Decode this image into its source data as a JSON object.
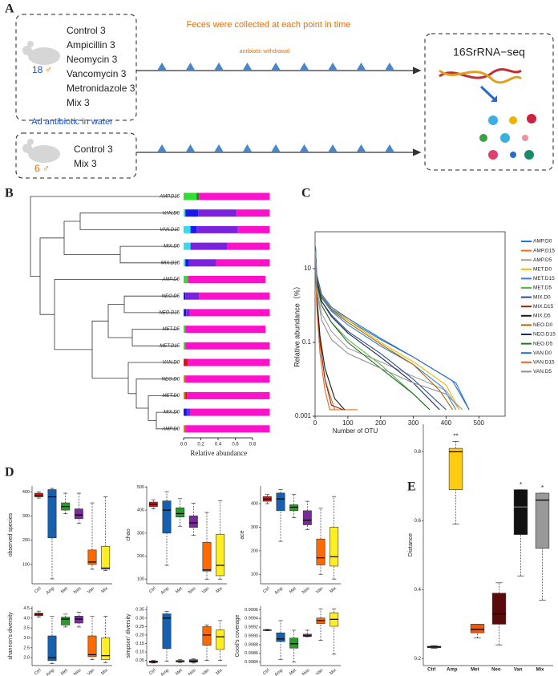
{
  "panel_labels": [
    "A",
    "B",
    "C",
    "D",
    "E"
  ],
  "schematic": {
    "group1": {
      "count": "18",
      "sex": "♂",
      "groups": [
        "Control 3",
        "Ampicillin 3",
        "Neomycin 3",
        "Vancomycin 3",
        "Metronidazole 3",
        "Mix 3"
      ]
    },
    "group2": {
      "count": "6",
      "sex": "♂",
      "groups": [
        "Control 3",
        "Mix 3"
      ]
    },
    "feces_note": "Feces were collected at each point in time",
    "withdrawal_note": "antibiotic withdrawal",
    "water_note": "Ad antibiotic in water",
    "sequencing": "16SrRNA−seq"
  },
  "chart_data": [
    {
      "type": "stacked-bar",
      "xlabel": "Relative abundance",
      "categories": [
        "AMP.D15",
        "VAN.D5",
        "VAN.D15",
        "MIX.D5",
        "MIX.D15",
        "AMP.D5",
        "NEO.D5",
        "NEO.D15",
        "MET.D5",
        "MET.D15",
        "VAN.D0",
        "NEO.D0",
        "MET.D0",
        "MIX.D0",
        "AMP.D0"
      ],
      "segments": [
        [
          0.15,
          0.03,
          0.82
        ],
        [
          0.02,
          0.15,
          0.44,
          0.39
        ],
        [
          0.08,
          0.07,
          0.48,
          0.37
        ],
        [
          0.08,
          0.43,
          0.49
        ],
        [
          0.02,
          0.04,
          0.32,
          0.62
        ],
        [
          0.05,
          0.9
        ],
        [
          0.02,
          0.16,
          0.82
        ],
        [
          0.03,
          0.04,
          0.93
        ],
        [
          0.02,
          0.93
        ],
        [
          0.02,
          0.98
        ],
        [
          0.05,
          0.95
        ],
        [
          0.02,
          0.98
        ],
        [
          0.02,
          0.02,
          0.96
        ],
        [
          0.04,
          0.04,
          0.92
        ],
        [
          0.02,
          0.98
        ]
      ],
      "segment_colors": [
        [
          "#33dd33",
          "#1a8a1a",
          "#ff11cc"
        ],
        [
          "#33ddee",
          "#1a1aee",
          "#7a22dd",
          "#ff11cc"
        ],
        [
          "#33ddee",
          "#1a1aee",
          "#7a22dd",
          "#ff11cc"
        ],
        [
          "#33ddee",
          "#7a22dd",
          "#ff11cc"
        ],
        [
          "#33ddee",
          "#1a1aee",
          "#7a22dd",
          "#ff11cc"
        ],
        [
          "#33dd33",
          "#ff11cc"
        ],
        [
          "#1a1aee",
          "#7a22dd",
          "#ff11cc"
        ],
        [
          "#1a1aee",
          "#7a22dd",
          "#ff11cc"
        ],
        [
          "#33dd33",
          "#ff11cc"
        ],
        [
          "#33dd33",
          "#ff11cc"
        ],
        [
          "#dd1111",
          "#ff11cc"
        ],
        [
          "#dd7711",
          "#ff11cc"
        ],
        [
          "#dd7711",
          "#dd1111",
          "#ff11cc"
        ],
        [
          "#1a1aee",
          "#7a22dd",
          "#ff11cc"
        ],
        [
          "#dd7711",
          "#ff11cc"
        ]
      ],
      "xlim": [
        0,
        1
      ],
      "xticks": [
        {
          "value": 0,
          "label": "0.0"
        },
        0.2,
        0.4,
        0.6,
        0.8
      ]
    },
    {
      "type": "line",
      "xlabel": "Number of OTU",
      "ylabel": "Relative abundance（%）",
      "log_y": true,
      "xlim": [
        0,
        580
      ],
      "ylim": [
        0.001,
        100
      ],
      "xticks": [
        0,
        100,
        200,
        300,
        400,
        500
      ],
      "yticks": [
        10,
        0.1,
        0.001
      ],
      "series": [
        {
          "name": "AMP.D0",
          "color": "#1f77d4",
          "x": [
            1,
            5,
            20,
            50,
            100,
            200,
            300,
            430,
            470
          ],
          "values": [
            40,
            6,
            1.8,
            0.8,
            0.4,
            0.12,
            0.04,
            0.008,
            0.0015
          ]
        },
        {
          "name": "AMP.D15",
          "color": "#e8701a",
          "x": [
            1,
            5,
            15,
            30,
            60,
            130
          ],
          "values": [
            20,
            1.5,
            0.1,
            0.01,
            0.0015,
            0.0015
          ]
        },
        {
          "name": "AMP.D5",
          "color": "#a0a0a0",
          "x": [
            1,
            5,
            20,
            50,
            100,
            200,
            300,
            400,
            440
          ],
          "values": [
            30,
            3,
            0.6,
            0.2,
            0.07,
            0.03,
            0.012,
            0.005,
            0.0015
          ]
        },
        {
          "name": "MET.D0",
          "color": "#f0b800",
          "x": [
            1,
            5,
            20,
            50,
            100,
            200,
            300,
            400,
            440
          ],
          "values": [
            40,
            7,
            2,
            0.9,
            0.4,
            0.1,
            0.03,
            0.007,
            0.0015
          ]
        },
        {
          "name": "MET.D15",
          "color": "#3a7fd0",
          "x": [
            1,
            5,
            20,
            50,
            100,
            200,
            300,
            390,
            430
          ],
          "values": [
            40,
            6,
            1.6,
            0.7,
            0.3,
            0.08,
            0.025,
            0.006,
            0.0015
          ]
        },
        {
          "name": "MET.D5",
          "color": "#5ab54a",
          "x": [
            1,
            5,
            20,
            50,
            100,
            200,
            300,
            350
          ],
          "values": [
            35,
            4,
            1,
            0.35,
            0.12,
            0.025,
            0.004,
            0.0015
          ]
        },
        {
          "name": "MIX.D0",
          "color": "#2a4d8f",
          "x": [
            1,
            5,
            20,
            50,
            100,
            200,
            300,
            400
          ],
          "values": [
            40,
            5,
            1.3,
            0.55,
            0.2,
            0.05,
            0.01,
            0.0015
          ]
        },
        {
          "name": "MIX.D15",
          "color": "#8b2a10",
          "x": [
            1,
            5,
            15,
            30,
            50,
            85
          ],
          "values": [
            25,
            1.5,
            0.1,
            0.01,
            0.002,
            0.0015
          ]
        },
        {
          "name": "MIX.D5",
          "color": "#1a1a1a",
          "x": [
            1,
            5,
            15,
            30,
            60,
            90
          ],
          "values": [
            25,
            2,
            0.15,
            0.02,
            0.003,
            0.0015
          ]
        },
        {
          "name": "NEO.D0",
          "color": "#b06a00",
          "x": [
            1,
            5,
            20,
            50,
            100,
            200,
            300,
            380,
            420
          ],
          "values": [
            40,
            6,
            1.7,
            0.75,
            0.35,
            0.09,
            0.025,
            0.005,
            0.0015
          ]
        },
        {
          "name": "NEO.D15",
          "color": "#1a2a5a",
          "x": [
            1,
            5,
            20,
            50,
            100,
            200,
            300,
            380
          ],
          "values": [
            38,
            5,
            1.3,
            0.5,
            0.18,
            0.04,
            0.008,
            0.0015
          ]
        },
        {
          "name": "NEO.D5",
          "color": "#2a6a2a",
          "x": [
            1,
            5,
            20,
            50,
            100,
            200,
            300,
            350
          ],
          "values": [
            35,
            4,
            1,
            0.35,
            0.1,
            0.02,
            0.004,
            0.0015
          ]
        },
        {
          "name": "VAN.D0",
          "color": "#2a6abf",
          "x": [
            1,
            5,
            20,
            50,
            100,
            200,
            300,
            420,
            470
          ],
          "values": [
            40,
            7,
            2,
            0.9,
            0.45,
            0.13,
            0.04,
            0.009,
            0.0015
          ]
        },
        {
          "name": "VAN.D15",
          "color": "#e06a20",
          "x": [
            1,
            5,
            15,
            30,
            45,
            60
          ],
          "values": [
            20,
            1,
            0.05,
            0.005,
            0.0015,
            0.0015
          ]
        },
        {
          "name": "VAN.D5",
          "color": "#909090",
          "x": [
            1,
            5,
            20,
            50,
            100,
            200,
            300,
            400,
            450
          ],
          "values": [
            30,
            2.5,
            0.4,
            0.12,
            0.05,
            0.02,
            0.008,
            0.004,
            0.0015
          ]
        }
      ]
    },
    {
      "type": "box",
      "ylabel": "observed species",
      "categories": [
        "Ctrl",
        "Amp",
        "Met",
        "Neo",
        "Van",
        "Mix"
      ],
      "colors": [
        "#dd1111",
        "#1560b0",
        "#2a9a2a",
        "#7a2a9a",
        "#ff6a00",
        "#ffee22"
      ],
      "boxes": [
        [
          375,
          380,
          385,
          395,
          400
        ],
        [
          40,
          210,
          380,
          410,
          415
        ],
        [
          310,
          325,
          340,
          355,
          395
        ],
        [
          270,
          290,
          305,
          330,
          395
        ],
        [
          80,
          100,
          110,
          160,
          355
        ],
        [
          75,
          80,
          85,
          175,
          380
        ]
      ],
      "ylim": [
        20,
        425
      ],
      "yticks": [
        100,
        200,
        300,
        400
      ]
    },
    {
      "type": "box",
      "ylabel": "chao",
      "categories": [
        "Ctrl",
        "Amp",
        "Met",
        "Neo",
        "Van",
        "Mix"
      ],
      "colors": [
        "#dd1111",
        "#1560b0",
        "#2a9a2a",
        "#7a2a9a",
        "#ff6a00",
        "#ffee22"
      ],
      "boxes": [
        [
          405,
          415,
          425,
          435,
          445
        ],
        [
          160,
          300,
          400,
          440,
          480
        ],
        [
          330,
          370,
          385,
          410,
          450
        ],
        [
          290,
          325,
          345,
          375,
          430
        ],
        [
          100,
          135,
          140,
          260,
          390
        ],
        [
          100,
          115,
          160,
          295,
          440
        ]
      ],
      "ylim": [
        80,
        505
      ],
      "yticks": [
        100,
        200,
        300,
        400,
        500
      ]
    },
    {
      "type": "box",
      "ylabel": "ace",
      "categories": [
        "Ctrl",
        "Amp",
        "Met",
        "Neo",
        "Van",
        "Mix"
      ],
      "colors": [
        "#dd1111",
        "#1560b0",
        "#2a9a2a",
        "#7a2a9a",
        "#ff6a00",
        "#ffee22"
      ],
      "boxes": [
        [
          400,
          410,
          420,
          430,
          440
        ],
        [
          240,
          370,
          420,
          445,
          460
        ],
        [
          340,
          370,
          385,
          395,
          440
        ],
        [
          290,
          310,
          330,
          370,
          410
        ],
        [
          100,
          140,
          170,
          250,
          380
        ],
        [
          80,
          135,
          175,
          300,
          430
        ]
      ],
      "ylim": [
        60,
        475
      ],
      "yticks": [
        100,
        200,
        300,
        400
      ]
    },
    {
      "type": "box",
      "ylabel": "shannon's diversity",
      "categories": [
        "Ctrl",
        "Amp",
        "Met",
        "Neo",
        "Van",
        "Mix"
      ],
      "colors": [
        "#dd1111",
        "#1560b0",
        "#2a9a2a",
        "#7a2a9a",
        "#ff6a00",
        "#ffee22"
      ],
      "boxes": [
        [
          4.05,
          4.12,
          4.2,
          4.25,
          4.35
        ],
        [
          1.7,
          1.85,
          2.0,
          3.1,
          4.1
        ],
        [
          3.55,
          3.65,
          3.95,
          4.05,
          4.2
        ],
        [
          3.55,
          3.75,
          3.95,
          4.1,
          4.3
        ],
        [
          1.9,
          2.05,
          2.15,
          3.1,
          4.1
        ],
        [
          1.75,
          1.9,
          2.1,
          3.0,
          4.1
        ]
      ],
      "ylim": [
        1.6,
        4.6
      ],
      "yticks": [
        {
          "value": 2,
          "label": "2.0"
        },
        2.5,
        {
          "value": 3,
          "label": "3.0"
        },
        3.5,
        {
          "value": 4,
          "label": "4.0"
        },
        4.5
      ]
    },
    {
      "type": "box",
      "ylabel": "simpson' diversity",
      "categories": [
        "Ctrl",
        "Amp",
        "Met",
        "Neo",
        "Van",
        "Mix"
      ],
      "colors": [
        "#dd1111",
        "#1560b0",
        "#2a9a2a",
        "#7a2a9a",
        "#ff6a00",
        "#ffee22"
      ],
      "boxes": [
        [
          0.035,
          0.038,
          0.042,
          0.047,
          0.05
        ],
        [
          0.045,
          0.12,
          0.3,
          0.325,
          0.34
        ],
        [
          0.038,
          0.042,
          0.045,
          0.05,
          0.055
        ],
        [
          0.035,
          0.04,
          0.046,
          0.055,
          0.06
        ],
        [
          0.05,
          0.14,
          0.2,
          0.25,
          0.26
        ],
        [
          0.05,
          0.115,
          0.19,
          0.23,
          0.285
        ]
      ],
      "ylim": [
        0.02,
        0.37
      ],
      "yticks": [
        0.05,
        {
          "value": 0.1,
          "label": "0.10"
        },
        0.15,
        {
          "value": 0.2,
          "label": "0.20"
        },
        0.25,
        {
          "value": 0.3,
          "label": "0.30"
        },
        0.35
      ]
    },
    {
      "type": "box",
      "ylabel": "Good's coverage",
      "categories": [
        "Ctrl",
        "Amp",
        "Met",
        "Neo",
        "Van",
        "Mix"
      ],
      "colors": [
        "#dd1111",
        "#1560b0",
        "#2a9a2a",
        "#7a2a9a",
        "#ff6a00",
        "#ffee22"
      ],
      "boxes": [
        [
          0.99912,
          0.99913,
          0.99913,
          0.99914,
          0.99915
        ],
        [
          0.99846,
          0.99887,
          0.99893,
          0.99907,
          0.99935
        ],
        [
          0.9984,
          0.99872,
          0.99882,
          0.99895,
          0.99913
        ],
        [
          0.99898,
          0.99899,
          0.999,
          0.99904,
          0.99913
        ],
        [
          0.9989,
          0.99928,
          0.99935,
          0.99941,
          0.99962
        ],
        [
          0.99858,
          0.99922,
          0.99938,
          0.99953,
          0.99962
        ]
      ],
      "ylim": [
        0.99832,
        0.99968
      ],
      "yticks": [
        0.9984,
        0.9986,
        0.9988,
        {
          "value": 0.999,
          "label": "0.9990"
        },
        0.9992,
        0.9994,
        0.9996
      ]
    },
    {
      "type": "box",
      "ylabel": "Distance",
      "categories": [
        "Ctrl",
        "Amp",
        "Met",
        "Neo",
        "Van",
        "Mix"
      ],
      "colors": [
        "#1a9a8a",
        "#ffcc11",
        "#ee5a11",
        "#5a0a0a",
        "#111111",
        "#999999"
      ],
      "boxes": [
        [
          0.23,
          0.232,
          0.234,
          0.236,
          0.238
        ],
        [
          0.59,
          0.69,
          0.8,
          0.81,
          0.83
        ],
        [
          0.26,
          0.275,
          0.285,
          0.3,
          0.3
        ],
        [
          0.24,
          0.3,
          0.33,
          0.39,
          0.42
        ],
        [
          0.44,
          0.56,
          0.64,
          0.69,
          0.69
        ],
        [
          0.37,
          0.52,
          0.66,
          0.68,
          0.68
        ]
      ],
      "significance": [
        null,
        "**",
        null,
        null,
        "*",
        "*"
      ],
      "ylim": [
        0.18,
        0.88
      ],
      "yticks": [
        0.2,
        0.4,
        0.6,
        0.8
      ]
    }
  ]
}
